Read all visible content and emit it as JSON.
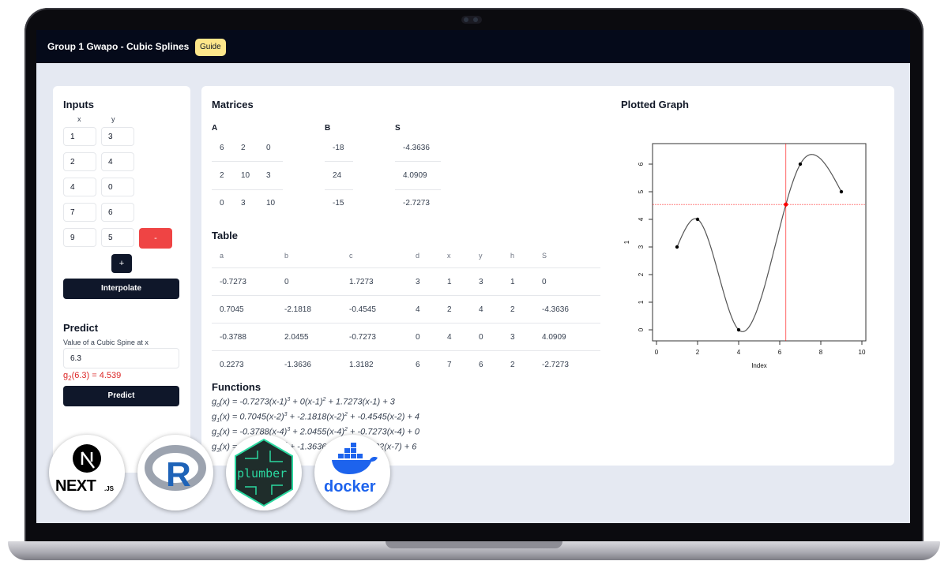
{
  "header": {
    "title": "Group 1 Gwapo - Cubic Splines",
    "guide_label": "Guide"
  },
  "inputs": {
    "title": "Inputs",
    "x_label": "x",
    "y_label": "y",
    "rows": [
      {
        "x": "1",
        "y": "3"
      },
      {
        "x": "2",
        "y": "4"
      },
      {
        "x": "4",
        "y": "0"
      },
      {
        "x": "7",
        "y": "6"
      },
      {
        "x": "9",
        "y": "5"
      }
    ],
    "remove_label": "-",
    "add_label": "+",
    "interpolate_label": "Interpolate"
  },
  "predict": {
    "title": "Predict",
    "field_label": "Value of a Cubic Spine at x",
    "value": "6.3",
    "result_prefix": "g",
    "result_sub": "2",
    "result_rest": "(6.3) = 4.539",
    "button_label": "Predict"
  },
  "matrices": {
    "title": "Matrices",
    "A": {
      "label": "A",
      "rows": [
        [
          "6",
          "2",
          "0"
        ],
        [
          "2",
          "10",
          "3"
        ],
        [
          "0",
          "3",
          "10"
        ]
      ]
    },
    "B": {
      "label": "B",
      "values": [
        "-18",
        "24",
        "-15"
      ]
    },
    "S": {
      "label": "S",
      "values": [
        "-4.3636",
        "4.0909",
        "-2.7273"
      ]
    }
  },
  "table": {
    "title": "Table",
    "headers": [
      "a",
      "b",
      "c",
      "d",
      "x",
      "y",
      "h",
      "S"
    ],
    "rows": [
      [
        "-0.7273",
        "0",
        "1.7273",
        "3",
        "1",
        "3",
        "1",
        "0"
      ],
      [
        "0.7045",
        "-2.1818",
        "-0.4545",
        "4",
        "2",
        "4",
        "2",
        "-4.3636"
      ],
      [
        "-0.3788",
        "2.0455",
        "-0.7273",
        "0",
        "4",
        "0",
        "3",
        "4.0909"
      ],
      [
        "0.2273",
        "-1.3636",
        "1.3182",
        "6",
        "7",
        "6",
        "2",
        "-2.7273"
      ]
    ]
  },
  "functions": {
    "title": "Functions",
    "items": [
      {
        "sub": "0",
        "p1": "(x) = -0.7273(x-1)",
        "p2": " + 0(x-1)",
        "p3": " + 1.7273(x-1) + 3"
      },
      {
        "sub": "1",
        "p1": "(x) = 0.7045(x-2)",
        "p2": " + -2.1818(x-2)",
        "p3": " + -0.4545(x-2) + 4"
      },
      {
        "sub": "2",
        "p1": "(x) = -0.3788(x-4)",
        "p2": " + 2.0455(x-4)",
        "p3": " + -0.7273(x-4) + 0"
      },
      {
        "sub": "3",
        "p1": "(x) = 0.2273(x-7)",
        "p2": " + -1.3636(x-7)",
        "p3": " + 1.3182(x-7) + 6"
      }
    ]
  },
  "graph": {
    "title": "Plotted Graph",
    "xlabel": "Index",
    "ylabel": "1",
    "xticks": [
      "0",
      "2",
      "4",
      "6",
      "8",
      "10"
    ],
    "yticks": [
      "0",
      "1",
      "2",
      "3",
      "4",
      "5",
      "6"
    ]
  },
  "chart_data": {
    "type": "line",
    "xlabel": "Index",
    "ylabel": "1",
    "xlim": [
      0,
      10
    ],
    "ylim": [
      0,
      6
    ],
    "points": [
      {
        "x": 1,
        "y": 3
      },
      {
        "x": 2,
        "y": 4
      },
      {
        "x": 4,
        "y": 0
      },
      {
        "x": 7,
        "y": 6
      },
      {
        "x": 9,
        "y": 5
      }
    ],
    "highlight": {
      "x": 6.3,
      "y": 4.539
    },
    "curve_color": "#555555",
    "highlight_color": "#ff0000",
    "grid": false
  },
  "logos": {
    "next_main": "NEXT",
    "next_sub": ".JS",
    "r_letter": "R",
    "plumber_text": "plumber",
    "docker_text": "docker"
  },
  "colors": {
    "navbar": "#050a1a",
    "accent_red": "#ef4444",
    "dark_button": "#0f172a",
    "guide": "#fde68a"
  }
}
